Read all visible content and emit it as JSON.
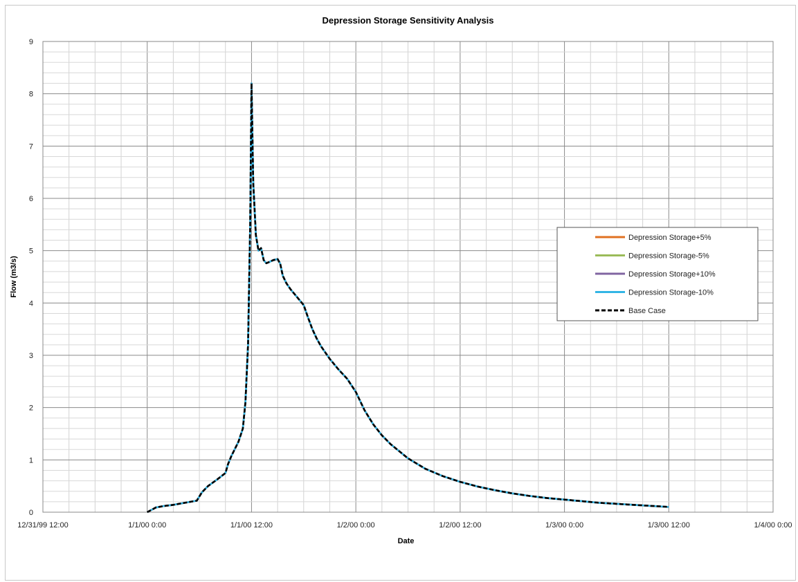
{
  "chart_data": {
    "type": "line",
    "title": "Depression Storage Sensitivity Analysis",
    "xlabel": "Date",
    "ylabel": "Flow (m3/s)",
    "x_unit": "hours from 12/31/99 12:00",
    "xlim": [
      0,
      84
    ],
    "ylim": [
      0,
      9
    ],
    "x_tick_values": [
      0,
      12,
      24,
      36,
      48,
      60,
      72,
      84
    ],
    "x_tick_labels": [
      "12/31/99 12:00",
      "1/1/00 0:00",
      "1/1/00 12:00",
      "1/2/00 0:00",
      "1/2/00 12:00",
      "1/3/00 0:00",
      "1/3/00 12:00",
      "1/4/00 0:00"
    ],
    "y_ticks": [
      0,
      1,
      2,
      3,
      4,
      5,
      6,
      7,
      8,
      9
    ],
    "grid": true,
    "legend_position": "right",
    "x": [
      12,
      13,
      14,
      15,
      16,
      17,
      17.7,
      18.3,
      19,
      20,
      21,
      21.3,
      21.7,
      22,
      22.5,
      23,
      23.3,
      23.6,
      23.85,
      24,
      24.2,
      24.5,
      24.8,
      25.1,
      25.4,
      25.7,
      26,
      26.5,
      27,
      27.3,
      27.6,
      28,
      28.5,
      29,
      29.5,
      30,
      30.5,
      31,
      31.5,
      32,
      33,
      34,
      35,
      36,
      37,
      38,
      39,
      40,
      42,
      44,
      46,
      48,
      50,
      52,
      54,
      56,
      58,
      60,
      62,
      64,
      66,
      68,
      70,
      72
    ],
    "series": [
      {
        "name": "Depression Storage+5%",
        "color": "#e07020",
        "style": "solid",
        "values": [
          0.0,
          0.09,
          0.12,
          0.14,
          0.17,
          0.2,
          0.22,
          0.38,
          0.5,
          0.62,
          0.75,
          0.92,
          1.08,
          1.18,
          1.35,
          1.6,
          2.1,
          3.2,
          5.5,
          8.2,
          6.3,
          5.3,
          5.0,
          5.05,
          4.82,
          4.76,
          4.78,
          4.82,
          4.84,
          4.75,
          4.52,
          4.38,
          4.26,
          4.16,
          4.06,
          3.96,
          3.72,
          3.5,
          3.32,
          3.17,
          2.93,
          2.73,
          2.55,
          2.3,
          1.95,
          1.68,
          1.47,
          1.3,
          1.03,
          0.83,
          0.69,
          0.58,
          0.49,
          0.42,
          0.36,
          0.31,
          0.27,
          0.24,
          0.21,
          0.18,
          0.16,
          0.14,
          0.12,
          0.1
        ]
      },
      {
        "name": "Depression Storage-5%",
        "color": "#9bbb59",
        "style": "solid",
        "values": [
          0.0,
          0.09,
          0.12,
          0.14,
          0.17,
          0.2,
          0.22,
          0.38,
          0.5,
          0.62,
          0.75,
          0.92,
          1.08,
          1.18,
          1.35,
          1.6,
          2.1,
          3.2,
          5.5,
          8.2,
          6.3,
          5.3,
          5.0,
          5.05,
          4.82,
          4.76,
          4.78,
          4.82,
          4.84,
          4.75,
          4.52,
          4.38,
          4.26,
          4.16,
          4.06,
          3.96,
          3.72,
          3.5,
          3.32,
          3.17,
          2.93,
          2.73,
          2.55,
          2.3,
          1.95,
          1.68,
          1.47,
          1.3,
          1.03,
          0.83,
          0.69,
          0.58,
          0.49,
          0.42,
          0.36,
          0.31,
          0.27,
          0.24,
          0.21,
          0.18,
          0.16,
          0.14,
          0.12,
          0.1
        ]
      },
      {
        "name": "Depression Storage+10%",
        "color": "#8064a2",
        "style": "solid",
        "values": [
          0.0,
          0.09,
          0.12,
          0.14,
          0.17,
          0.2,
          0.22,
          0.38,
          0.5,
          0.62,
          0.75,
          0.92,
          1.08,
          1.18,
          1.35,
          1.6,
          2.1,
          3.2,
          5.5,
          8.2,
          6.3,
          5.3,
          5.0,
          5.05,
          4.82,
          4.76,
          4.78,
          4.82,
          4.84,
          4.75,
          4.52,
          4.38,
          4.26,
          4.16,
          4.06,
          3.96,
          3.72,
          3.5,
          3.32,
          3.17,
          2.93,
          2.73,
          2.55,
          2.3,
          1.95,
          1.68,
          1.47,
          1.3,
          1.03,
          0.83,
          0.69,
          0.58,
          0.49,
          0.42,
          0.36,
          0.31,
          0.27,
          0.24,
          0.21,
          0.18,
          0.16,
          0.14,
          0.12,
          0.1
        ]
      },
      {
        "name": "Depression Storage-10%",
        "color": "#33b5e5",
        "style": "solid",
        "values": [
          0.0,
          0.09,
          0.12,
          0.14,
          0.17,
          0.2,
          0.22,
          0.38,
          0.5,
          0.62,
          0.75,
          0.92,
          1.08,
          1.18,
          1.35,
          1.6,
          2.1,
          3.2,
          5.5,
          8.2,
          6.3,
          5.3,
          5.0,
          5.05,
          4.82,
          4.76,
          4.78,
          4.82,
          4.84,
          4.75,
          4.52,
          4.38,
          4.26,
          4.16,
          4.06,
          3.96,
          3.72,
          3.5,
          3.32,
          3.17,
          2.93,
          2.73,
          2.55,
          2.3,
          1.95,
          1.68,
          1.47,
          1.3,
          1.03,
          0.83,
          0.69,
          0.58,
          0.49,
          0.42,
          0.36,
          0.31,
          0.27,
          0.24,
          0.21,
          0.18,
          0.16,
          0.14,
          0.12,
          0.1
        ]
      },
      {
        "name": "Base Case",
        "color": "#000000",
        "style": "dashed",
        "values": [
          0.0,
          0.09,
          0.12,
          0.14,
          0.17,
          0.2,
          0.22,
          0.38,
          0.5,
          0.62,
          0.75,
          0.92,
          1.08,
          1.18,
          1.35,
          1.6,
          2.1,
          3.2,
          5.5,
          8.2,
          6.3,
          5.3,
          5.0,
          5.05,
          4.82,
          4.76,
          4.78,
          4.82,
          4.84,
          4.75,
          4.52,
          4.38,
          4.26,
          4.16,
          4.06,
          3.96,
          3.72,
          3.5,
          3.32,
          3.17,
          2.93,
          2.73,
          2.55,
          2.3,
          1.95,
          1.68,
          1.47,
          1.3,
          1.03,
          0.83,
          0.69,
          0.58,
          0.49,
          0.42,
          0.36,
          0.31,
          0.27,
          0.24,
          0.21,
          0.18,
          0.16,
          0.14,
          0.12,
          0.1
        ]
      }
    ]
  }
}
